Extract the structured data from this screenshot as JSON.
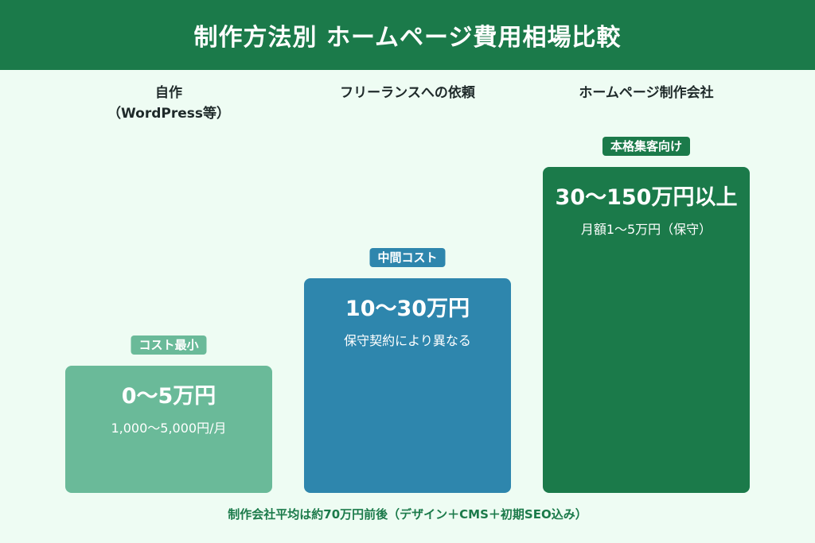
{
  "title": "制作方法別 ホームページ費用相場比較",
  "colors": {
    "header": "#1b7a4a",
    "background": "#eefcf3"
  },
  "chart_data": {
    "type": "bar",
    "unit": "万円",
    "categories": [
      "自作\n（WordPress等）",
      "フリーランスへの依頼",
      "ホームページ制作会社"
    ],
    "series": [
      {
        "values": [
          [
            0,
            5
          ],
          [
            10,
            30
          ],
          [
            30,
            150
          ]
        ]
      }
    ],
    "bars": [
      {
        "badge": "コスト最小",
        "main": "0〜5万円",
        "sub": "1,000〜5,000円/月",
        "color": "#6aba99"
      },
      {
        "badge": "中間コスト",
        "main": "10〜30万円",
        "sub": "保守契約により異なる",
        "color": "#2e86ad"
      },
      {
        "badge": "本格集客向け",
        "main": "30〜150万円以上",
        "sub": "月額1〜5万円（保守）",
        "color": "#1b7a4a"
      }
    ]
  },
  "footer_note": "制作会社平均は約70万円前後（デザイン＋CMS＋初期SEO込み）"
}
